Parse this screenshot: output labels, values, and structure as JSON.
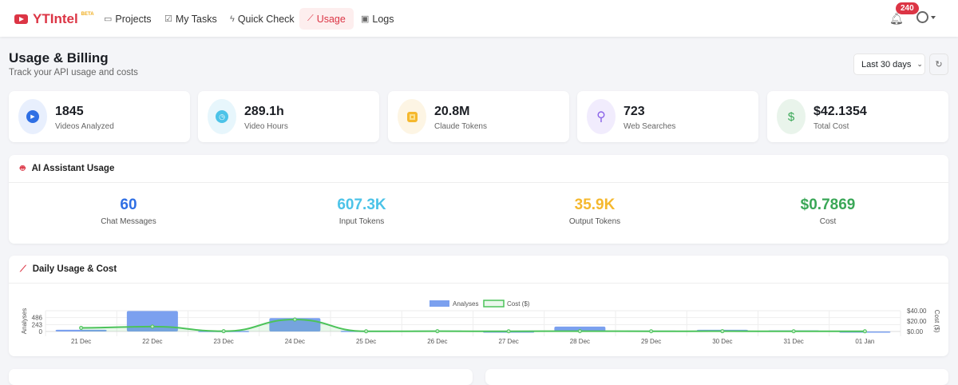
{
  "nav": {
    "brand": "YTIntel",
    "beta": "BETA",
    "items": [
      {
        "label": "Projects",
        "icon": "folder-icon"
      },
      {
        "label": "My Tasks",
        "icon": "checkbox-icon"
      },
      {
        "label": "Quick Check",
        "icon": "lightning-icon"
      },
      {
        "label": "Usage",
        "icon": "chart-line-icon",
        "active": true
      },
      {
        "label": "Logs",
        "icon": "terminal-icon"
      }
    ],
    "notifications": "240"
  },
  "page": {
    "title": "Usage & Billing",
    "subtitle": "Track your API usage and costs",
    "range": "Last 30 days"
  },
  "stats": [
    {
      "value": "1845",
      "label": "Videos Analyzed",
      "icon": "play-icon",
      "color": "#2f6fe4"
    },
    {
      "value": "289.1h",
      "label": "Video Hours",
      "icon": "clock-icon",
      "color": "#4cc3e8"
    },
    {
      "value": "20.8M",
      "label": "Claude Tokens",
      "icon": "chip-icon",
      "color": "#f5b82e"
    },
    {
      "value": "723",
      "label": "Web Searches",
      "icon": "search-icon",
      "color": "#8a63e8"
    },
    {
      "value": "$42.1354",
      "label": "Total Cost",
      "icon": "dollar-icon",
      "color": "#3aa757"
    }
  ],
  "ai": {
    "title": "AI Assistant Usage",
    "items": [
      {
        "value": "60",
        "label": "Chat Messages",
        "color": "#2f6fe4"
      },
      {
        "value": "607.3K",
        "label": "Input Tokens",
        "color": "#4cc3e8"
      },
      {
        "value": "35.9K",
        "label": "Output Tokens",
        "color": "#f5b82e"
      },
      {
        "value": "$0.7869",
        "label": "Cost",
        "color": "#3aa757"
      }
    ]
  },
  "chart_data": {
    "title": "Daily Usage & Cost",
    "type": "bar",
    "categories": [
      "21 Dec",
      "22 Dec",
      "23 Dec",
      "24 Dec",
      "25 Dec",
      "26 Dec",
      "27 Dec",
      "28 Dec",
      "29 Dec",
      "30 Dec",
      "31 Dec",
      "01 Jan"
    ],
    "series": [
      {
        "name": "Analyses",
        "type": "bar",
        "axis": "left",
        "color": "#7ba0ef",
        "values": [
          60,
          720,
          20,
          470,
          25,
          30,
          0,
          170,
          30,
          60,
          40,
          0
        ]
      },
      {
        "name": "Cost ($)",
        "type": "line",
        "axis": "right",
        "color": "#4cc35a",
        "values": [
          7,
          9.5,
          0.5,
          23,
          0.3,
          0.5,
          0.4,
          0.6,
          0.4,
          0.5,
          0.4,
          0.3
        ]
      }
    ],
    "ylabel": "Analyses",
    "y2label": "Cost ($)",
    "ylim": [
      0,
      729
    ],
    "yticks": [
      "486",
      "243",
      "0"
    ],
    "y2lim": [
      0,
      40
    ],
    "y2ticks": [
      "$40.00",
      "$20.00",
      "$0.00"
    ],
    "legend": "top-center",
    "grid": true
  }
}
